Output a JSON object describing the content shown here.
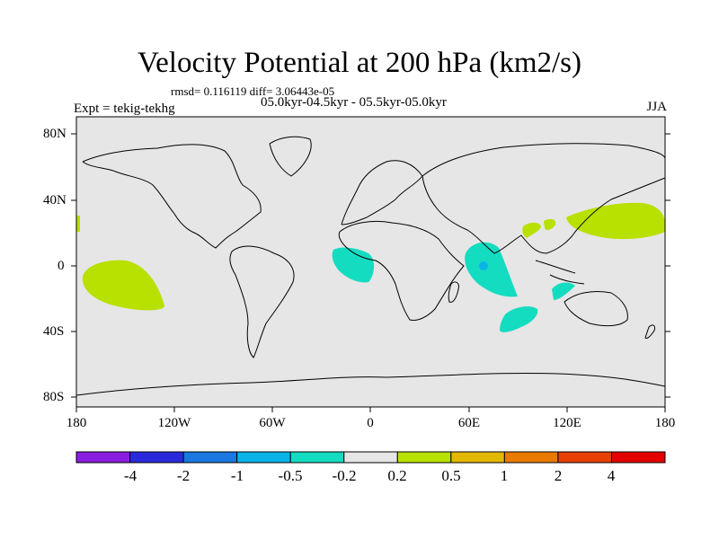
{
  "title": "Velocity Potential at 200 hPa (km2/s)",
  "stats_line": "rmsd= 0.116119 diff= 3.06443e-05",
  "experiment_label": "Expt = tekig-tekhg",
  "period_label": "05.0kyr-04.5kyr - 05.5kyr-05.0kyr",
  "season_label": "JJA",
  "axes": {
    "lat_ticks": [
      "80N",
      "40N",
      "0",
      "40S",
      "80S"
    ],
    "lon_ticks": [
      "180",
      "120W",
      "60W",
      "0",
      "60E",
      "120E",
      "180"
    ]
  },
  "colorbar": {
    "labels": [
      "-4",
      "-2",
      "-1",
      "-0.5",
      "-0.2",
      "0.2",
      "0.5",
      "1",
      "2",
      "4"
    ],
    "colors": [
      "#8a1ee0",
      "#2a2adc",
      "#1a78e0",
      "#0ab4e8",
      "#14dcc0",
      "#e6e6e6",
      "#b8e000",
      "#e2b800",
      "#e87a00",
      "#e84000",
      "#e40000"
    ]
  },
  "colors": {
    "background": "#e6e6e6",
    "positive": "#b8e000",
    "negative": "#14dcc0",
    "strong_negative": "#0ab4e8",
    "coast": "#000000"
  }
}
